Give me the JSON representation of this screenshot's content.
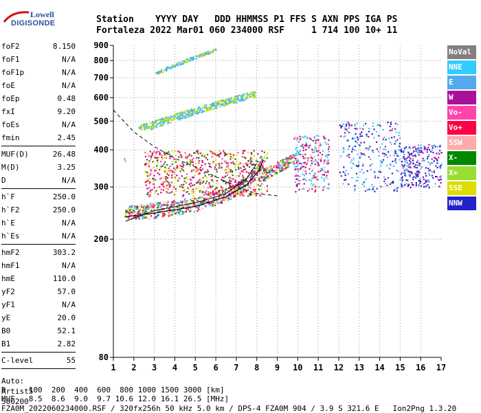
{
  "logo": {
    "line1": "Lowell",
    "line2": "DIGISONDE"
  },
  "header": {
    "labels": [
      "Station",
      "YYYY",
      "DAY",
      "DDD",
      "HHMMSS",
      "P1",
      "FFS",
      "S",
      "AXN",
      "PPS",
      "IGA",
      "PS"
    ],
    "values": [
      "Fortaleza",
      "2022",
      "Mar01",
      "060",
      "234000",
      "RSF",
      "1",
      "714",
      "100",
      "10+",
      "11"
    ]
  },
  "params": {
    "group1": [
      {
        "name": "foF2",
        "value": "8.150"
      },
      {
        "name": "foF1",
        "value": "N/A"
      },
      {
        "name": "foF1p",
        "value": "N/A"
      },
      {
        "name": "foE",
        "value": "N/A"
      },
      {
        "name": "foEp",
        "value": "0.48"
      },
      {
        "name": "fxI",
        "value": "9.20"
      },
      {
        "name": "foEs",
        "value": "N/A"
      },
      {
        "name": "fmin",
        "value": "2.45"
      }
    ],
    "group2": [
      {
        "name": "MUF(D)",
        "value": "26.48"
      },
      {
        "name": "M(D)",
        "value": "3.25"
      },
      {
        "name": "D",
        "value": "N/A"
      }
    ],
    "group3": [
      {
        "name": "h`F",
        "value": "250.0"
      },
      {
        "name": "h`F2",
        "value": "250.0"
      },
      {
        "name": "h`E",
        "value": "N/A"
      },
      {
        "name": "h`Es",
        "value": "N/A"
      }
    ],
    "group4": [
      {
        "name": "hmF2",
        "value": "303.2"
      },
      {
        "name": "hmF1",
        "value": "N/A"
      },
      {
        "name": "hmE",
        "value": "110.0"
      },
      {
        "name": "yF2",
        "value": "57.0"
      },
      {
        "name": "yF1",
        "value": "N/A"
      },
      {
        "name": "yE",
        "value": "20.0"
      },
      {
        "name": "B0",
        "value": "52.1"
      },
      {
        "name": "B1",
        "value": "2.82"
      }
    ],
    "group5": [
      {
        "name": "C-level",
        "value": "55"
      }
    ],
    "auto": [
      "Auto:",
      "Artist5",
      "500200"
    ]
  },
  "legend": [
    {
      "label": "NoVal",
      "color": "#808080"
    },
    {
      "label": "NNE",
      "color": "#33ccff"
    },
    {
      "label": "E",
      "color": "#55aaee"
    },
    {
      "label": "W",
      "color": "#aa1199"
    },
    {
      "label": "Vo-",
      "color": "#ff44aa"
    },
    {
      "label": "Vo+",
      "color": "#ff0044"
    },
    {
      "label": "SSW",
      "color": "#ffaaaa"
    },
    {
      "label": "X-",
      "color": "#008800"
    },
    {
      "label": "X+",
      "color": "#99dd33"
    },
    {
      "label": "SSE",
      "color": "#dddd00"
    },
    {
      "label": "NNW",
      "color": "#2222cc"
    }
  ],
  "footer": {
    "d_row": "D     100  200  400  600  800 1000 1500 3000 [km]",
    "muf_row": "MUF   8.5  8.6  9.0  9.7 10.6 12.0 16.1 26.5 [MHz]",
    "file_row": "FZA0M_2022060234000.RSF / 320fx256h 50 kHz 5.0 km / DPS-4 FZA0M 904 / 3.9 S 321.6 E   Ion2Png 1.3.20"
  },
  "chart_data": {
    "type": "scatter",
    "title": "",
    "xlabel": "",
    "ylabel": "",
    "xlim": [
      1,
      17
    ],
    "ylim": [
      80,
      900
    ],
    "x_ticks": [
      1,
      2,
      3,
      4,
      5,
      6,
      7,
      8,
      9,
      10,
      11,
      12,
      13,
      14,
      15,
      16,
      17
    ],
    "y_ticks": [
      80,
      200,
      300,
      400,
      500,
      600,
      700,
      800,
      900
    ],
    "y_scale": "log",
    "grid": "dotted",
    "legend_position": "right",
    "clusters": [
      {
        "name": "F2 trace",
        "x_range": [
          1.5,
          9.8
        ],
        "y_range": [
          235,
          400
        ],
        "colors": [
          "#33ccff",
          "#55aaee",
          "#ff0044",
          "#ff44aa",
          "#aa1199",
          "#ffaaaa",
          "#008800",
          "#dddd00"
        ]
      },
      {
        "name": "F2 spread",
        "x_range": [
          2.5,
          8.5
        ],
        "y_range": [
          280,
          400
        ],
        "colors": [
          "#aa1199",
          "#ff0044",
          "#ff44aa",
          "#008800",
          "#dddd00"
        ]
      },
      {
        "name": "oblique echoes",
        "x_range": [
          9.8,
          11.5
        ],
        "y_range": [
          290,
          450
        ],
        "colors": [
          "#33ccff",
          "#55aaee",
          "#ffaaaa",
          "#aa1199",
          "#ff0044"
        ]
      },
      {
        "name": "oblique echoes 2",
        "x_range": [
          12,
          15
        ],
        "y_range": [
          290,
          500
        ],
        "colors": [
          "#2222cc",
          "#55aaee",
          "#aa1199",
          "#33ccff"
        ]
      },
      {
        "name": "oblique echoes 3",
        "x_range": [
          15,
          17
        ],
        "y_range": [
          300,
          420
        ],
        "colors": [
          "#55aaee",
          "#2222cc",
          "#aa1199"
        ]
      },
      {
        "name": "second hop",
        "x_range": [
          2.2,
          7.9
        ],
        "y_range": [
          470,
          650
        ],
        "colors": [
          "#55aaee",
          "#33ccff",
          "#dddd00",
          "#99dd33"
        ]
      },
      {
        "name": "third hop",
        "x_range": [
          3,
          6
        ],
        "y_range": [
          720,
          900
        ],
        "colors": [
          "#55aaee",
          "#33ccff",
          "#dddd00"
        ]
      }
    ],
    "profile_curve": [
      [
        1.55,
        238
      ],
      [
        3,
        245
      ],
      [
        5,
        258
      ],
      [
        6.5,
        278
      ],
      [
        7.5,
        305
      ],
      [
        8.15,
        345
      ],
      [
        8.3,
        370
      ]
    ],
    "mode_curve": [
      [
        1.6,
        230
      ],
      [
        3,
        250
      ],
      [
        5,
        265
      ],
      [
        6.5,
        285
      ],
      [
        7.5,
        320
      ],
      [
        8,
        360
      ]
    ],
    "mhf_dashed": [
      [
        1.0,
        545
      ],
      [
        2,
        460
      ],
      [
        3,
        410
      ],
      [
        4,
        375
      ],
      [
        5,
        350
      ],
      [
        6,
        325
      ],
      [
        7,
        300
      ],
      [
        8,
        285
      ],
      [
        9,
        280
      ]
    ]
  }
}
